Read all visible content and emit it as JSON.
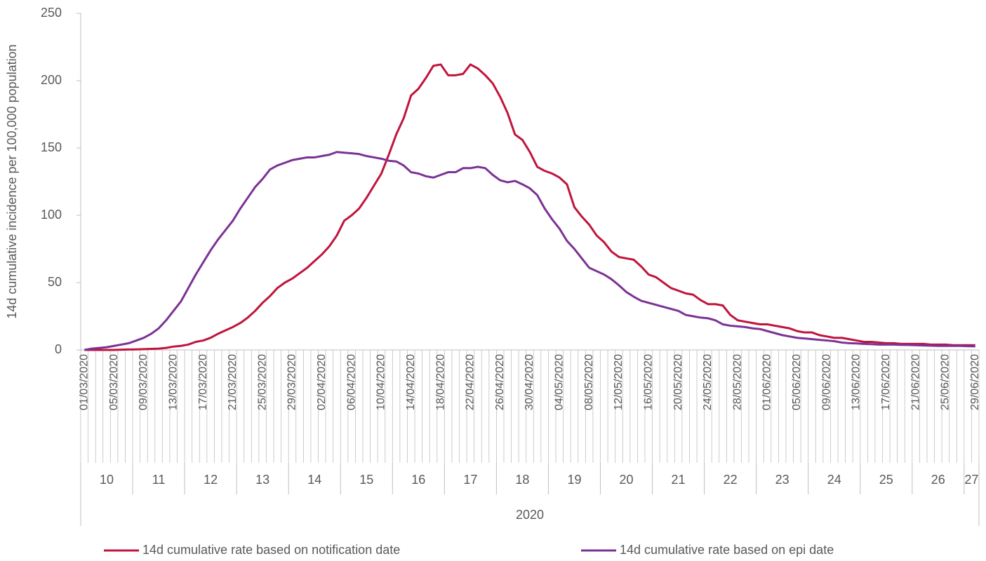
{
  "chart_data": {
    "type": "line",
    "y_label": "14d cumulative incidence per 100,000 population",
    "categories": [
      "01/03/2020",
      null,
      null,
      null,
      "05/03/2020",
      null,
      null,
      null,
      "09/03/2020",
      null,
      null,
      null,
      "13/03/2020",
      null,
      null,
      null,
      "17/03/2020",
      null,
      null,
      null,
      "21/03/2020",
      null,
      null,
      null,
      "25/03/2020",
      null,
      null,
      null,
      "29/03/2020",
      null,
      null,
      null,
      "02/04/2020",
      null,
      null,
      null,
      "06/04/2020",
      null,
      null,
      null,
      "10/04/2020",
      null,
      null,
      null,
      "14/04/2020",
      null,
      null,
      null,
      "18/04/2020",
      null,
      null,
      null,
      "22/04/2020",
      null,
      null,
      null,
      "26/04/2020",
      null,
      null,
      null,
      "30/04/2020",
      null,
      null,
      null,
      "04/05/2020",
      null,
      null,
      null,
      "08/05/2020",
      null,
      null,
      null,
      "12/05/2020",
      null,
      null,
      null,
      "16/05/2020",
      null,
      null,
      null,
      "20/05/2020",
      null,
      null,
      null,
      "24/05/2020",
      null,
      null,
      null,
      "28/05/2020",
      null,
      null,
      null,
      "01/06/2020",
      null,
      null,
      null,
      "05/06/2020",
      null,
      null,
      null,
      "09/06/2020",
      null,
      null,
      null,
      "13/06/2020",
      null,
      null,
      null,
      "17/06/2020",
      null,
      null,
      null,
      "21/06/2020",
      null,
      null,
      null,
      "25/06/2020",
      null,
      null,
      null,
      "29/06/2020"
    ],
    "weeks": [
      "10",
      "11",
      "12",
      "13",
      "14",
      "15",
      "16",
      "17",
      "18",
      "19",
      "20",
      "21",
      "22",
      "23",
      "24",
      "25",
      "26",
      "27"
    ],
    "year": "2020",
    "series": [
      {
        "name": "14d cumulative rate based on notification date",
        "color": "#c0143c",
        "values": [
          0,
          0,
          0,
          0,
          0,
          0.2,
          0.3,
          0.4,
          0.6,
          0.8,
          1,
          1.5,
          2.5,
          3,
          4,
          6,
          7,
          9,
          12,
          14.5,
          17,
          20,
          24,
          29,
          35,
          40,
          46,
          50,
          53,
          57,
          61,
          66,
          71,
          77,
          85,
          96,
          100,
          105,
          113,
          122,
          131,
          145,
          160,
          172,
          189,
          194,
          202,
          211,
          212,
          204,
          204,
          205,
          212,
          209,
          204,
          198,
          188,
          176,
          160,
          156,
          147,
          136,
          133,
          131,
          128,
          123,
          106,
          99,
          93,
          85,
          80,
          73,
          69,
          68,
          67,
          62,
          56,
          54,
          50,
          46,
          44,
          42,
          41,
          37,
          34,
          34,
          33,
          26,
          22,
          21,
          20,
          19,
          19,
          18,
          17,
          16,
          14,
          13,
          13,
          11,
          10,
          9,
          9,
          8,
          7,
          6,
          6,
          5.5,
          5,
          5,
          4.5,
          4.5,
          4.5,
          4.5,
          4,
          4,
          4,
          3.5,
          3.5,
          3.5,
          3.5
        ]
      },
      {
        "name": "14d cumulative rate based on epi date",
        "color": "#7b3294",
        "values": [
          0,
          1,
          1.5,
          2,
          3,
          4,
          5,
          7,
          9,
          12,
          16,
          22,
          29,
          36,
          46,
          56,
          65,
          74,
          82,
          89,
          96,
          105,
          113,
          121,
          127,
          134,
          137,
          139,
          141,
          142,
          143,
          143,
          144,
          145,
          147,
          146.5,
          146,
          145.5,
          144,
          143,
          142,
          140.5,
          140,
          137,
          132,
          131,
          129,
          128,
          130,
          132,
          132,
          135,
          135,
          136,
          135,
          130,
          126,
          124.5,
          125.5,
          123,
          120,
          115,
          105,
          97,
          90,
          81,
          75,
          68,
          61,
          58.5,
          56,
          52.5,
          48,
          43,
          39.5,
          36.5,
          35,
          33.5,
          32,
          30.5,
          29,
          26,
          25,
          24,
          23.5,
          22,
          19,
          18,
          17.5,
          17,
          16,
          15.5,
          14,
          12.5,
          11,
          10,
          9,
          8.5,
          8,
          7.5,
          7,
          6.5,
          5.5,
          5,
          4.8,
          4.5,
          4.3,
          4,
          4,
          4,
          3.8,
          3.7,
          3.5,
          3.3,
          3.2,
          3,
          3,
          3,
          3,
          2.8,
          2.7
        ]
      }
    ],
    "ylim": [
      0,
      250
    ],
    "yticks": [
      0,
      50,
      100,
      150,
      200,
      250
    ],
    "grid": false
  }
}
